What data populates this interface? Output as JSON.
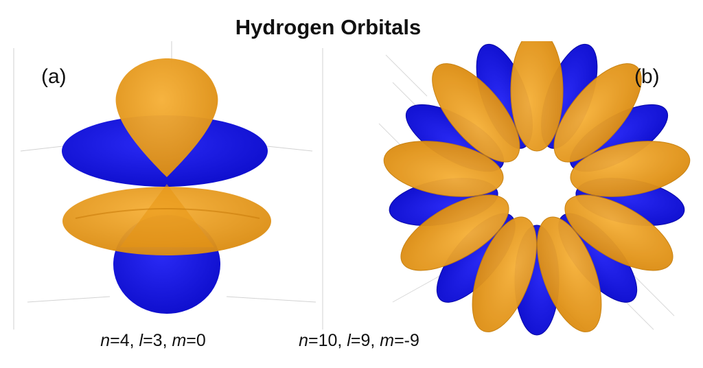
{
  "title": "Hydrogen Orbitals",
  "colors": {
    "positive_lobe": "#f2a11d",
    "negative_lobe": "#1414e6",
    "axes": "#cfcfcf"
  },
  "panels": [
    {
      "tag": "(a)",
      "n_label": "n",
      "n_value": "=4, ",
      "l_label": "l",
      "l_value": "=3, ",
      "m_label": "m",
      "m_value": "=0"
    },
    {
      "tag": "(b)",
      "n_label": "n",
      "n_value": "=10, ",
      "l_label": "l",
      "l_value": "=9, ",
      "m_label": "m",
      "m_value": "=-9"
    }
  ]
}
